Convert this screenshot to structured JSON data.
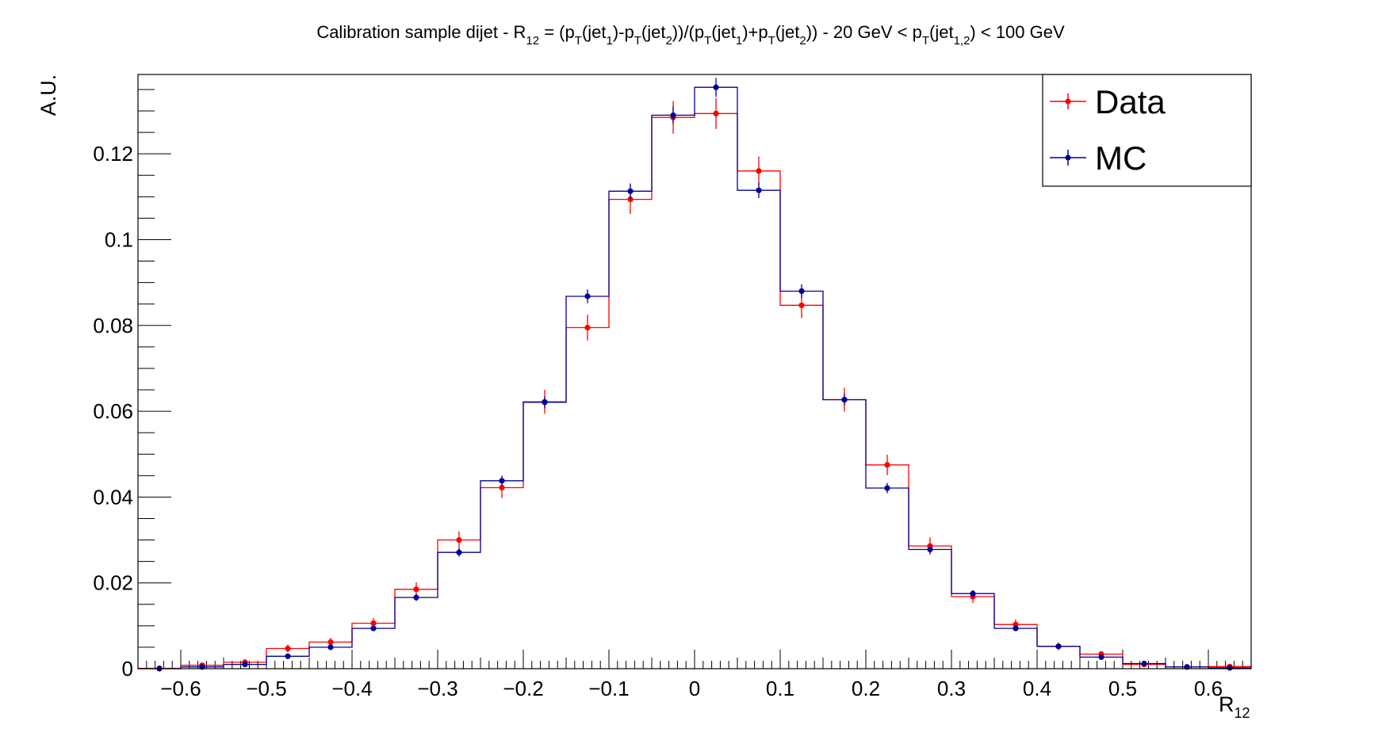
{
  "chart_data": {
    "type": "histogram",
    "title": "Calibration sample dijet - R_{12} = (p_{T}(jet_{1})-p_{T}(jet_{2}))/(p_{T}(jet_{1})+p_{T}(jet_{2})) - 20 GeV < p_{T}(jet_{1,2}) < 100 GeV",
    "title_parts": {
      "p1": "Calibration sample dijet - R",
      "s1": "12",
      "p2": " = (p",
      "s2": "T",
      "p3": "(jet",
      "s3": "1",
      "p4": ")-p",
      "s4": "T",
      "p5": "(jet",
      "s5": "2",
      "p6": "))/(p",
      "s6": "T",
      "p7": "(jet",
      "s7": "1",
      "p8": ")+p",
      "s8": "T",
      "p9": "(jet",
      "s9": "2",
      "p10": ")) - 20 GeV < p",
      "s10": "T",
      "p11": "(jet",
      "s11": "1,2",
      "p12": ") < 100 GeV"
    },
    "xlabel": "R",
    "xlabel_sub": "12",
    "ylabel": "A.U.",
    "xlim": [
      -0.65,
      0.65
    ],
    "ylim": [
      0,
      0.1385
    ],
    "bin_edges": [
      -0.65,
      -0.6,
      -0.55,
      -0.5,
      -0.45,
      -0.4,
      -0.35,
      -0.3,
      -0.25,
      -0.2,
      -0.15,
      -0.1,
      -0.05,
      0.0,
      0.05,
      0.1,
      0.15,
      0.2,
      0.25,
      0.3,
      0.35,
      0.4,
      0.45,
      0.5,
      0.55,
      0.6,
      0.65
    ],
    "x_ticks": [
      "−0.6",
      "−0.5",
      "−0.4",
      "−0.3",
      "−0.2",
      "−0.1",
      "0",
      "0.1",
      "0.2",
      "0.3",
      "0.4",
      "0.5",
      "0.6"
    ],
    "x_tick_values": [
      -0.6,
      -0.5,
      -0.4,
      -0.3,
      -0.2,
      -0.1,
      0,
      0.1,
      0.2,
      0.3,
      0.4,
      0.5,
      0.6
    ],
    "y_ticks": [
      "0",
      "0.02",
      "0.04",
      "0.06",
      "0.08",
      "0.1",
      "0.12"
    ],
    "y_tick_values": [
      0,
      0.02,
      0.04,
      0.06,
      0.08,
      0.1,
      0.12
    ],
    "grid": false,
    "legend_position": "top-right",
    "series": [
      {
        "name": "Data",
        "color": "#ff0000",
        "values": [
          0.0001,
          0.0008,
          0.0015,
          0.0047,
          0.0062,
          0.0106,
          0.0185,
          0.03,
          0.0422,
          0.0622,
          0.0795,
          0.1094,
          0.1285,
          0.1294,
          0.116,
          0.0847,
          0.0627,
          0.0475,
          0.0286,
          0.0168,
          0.0103,
          0.0052,
          0.0034,
          0.001,
          0.0004,
          0.0005
        ],
        "errors": [
          0.0002,
          0.0005,
          0.0007,
          0.0009,
          0.001,
          0.0012,
          0.0016,
          0.002,
          0.0024,
          0.0028,
          0.003,
          0.0034,
          0.0038,
          0.0036,
          0.0034,
          0.003,
          0.0028,
          0.0024,
          0.002,
          0.0015,
          0.0012,
          0.0009,
          0.0007,
          0.0005,
          0.0003,
          0.0004
        ]
      },
      {
        "name": "MC",
        "color": "#000099",
        "values": [
          0.0,
          0.0004,
          0.001,
          0.0029,
          0.005,
          0.0094,
          0.0166,
          0.0271,
          0.0438,
          0.0621,
          0.0868,
          0.1113,
          0.129,
          0.1355,
          0.1115,
          0.088,
          0.0627,
          0.0421,
          0.0278,
          0.0175,
          0.0094,
          0.0052,
          0.0027,
          0.0012,
          0.0004,
          0.0002
        ],
        "errors": [
          0.0001,
          0.0002,
          0.0003,
          0.0004,
          0.0005,
          0.0006,
          0.0008,
          0.001,
          0.0012,
          0.0014,
          0.0016,
          0.0018,
          0.002,
          0.0022,
          0.0018,
          0.0016,
          0.0014,
          0.0012,
          0.001,
          0.0008,
          0.0006,
          0.0005,
          0.0004,
          0.0003,
          0.0002,
          0.0001
        ]
      }
    ]
  }
}
